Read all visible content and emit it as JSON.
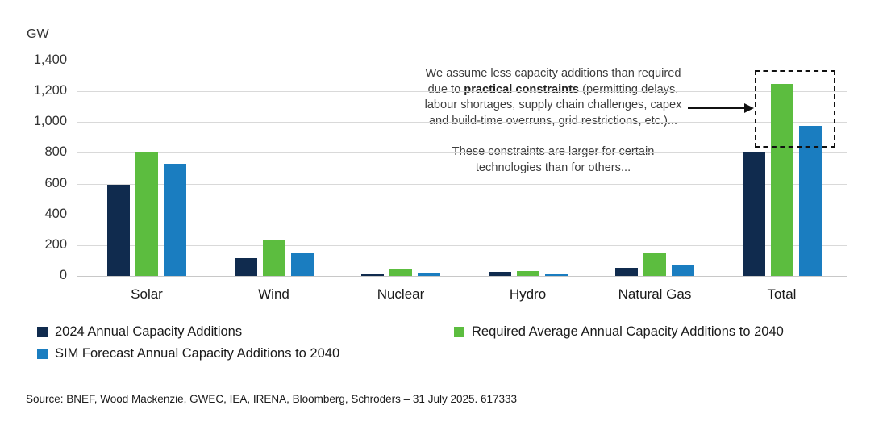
{
  "unit_label": "GW",
  "chart_data": {
    "type": "bar",
    "title": "",
    "ylabel": "GW",
    "xlabel": "",
    "ylim": [
      0,
      1400
    ],
    "ytick_step": 200,
    "yticks": [
      "1,400",
      "1,200",
      "1,000",
      "800",
      "600",
      "400",
      "200",
      "0"
    ],
    "grid": true,
    "legend_position": "bottom",
    "categories": [
      "Solar",
      "Wind",
      "Nuclear",
      "Hydro",
      "Natural Gas",
      "Total"
    ],
    "series": [
      {
        "name": "2024 Annual Capacity Additions",
        "color": "#102B4E",
        "values": [
          590,
          115,
          10,
          25,
          55,
          800
        ]
      },
      {
        "name": "Required Average Annual Capacity Additions to 2040",
        "color": "#5CBD3F",
        "values": [
          800,
          230,
          45,
          30,
          150,
          1250
        ]
      },
      {
        "name": "SIM Forecast Annual Capacity Additions to 2040",
        "color": "#1A7DC0",
        "values": [
          730,
          145,
          20,
          12,
          70,
          975
        ]
      }
    ]
  },
  "annotation": {
    "para1_before": "We assume less capacity additions than required due to ",
    "para1_bold": "practical constraints",
    "para1_after": " (permitting delays, labour shortages, supply chain challenges, capex and build-time overruns, grid restrictions, etc.)...",
    "para2": "These constraints are larger for certain technologies than for others..."
  },
  "source": "Source: BNEF, Wood Mackenzie, GWEC, IEA, IRENA, Bloomberg, Schroders – 31 July 2025. 617333"
}
